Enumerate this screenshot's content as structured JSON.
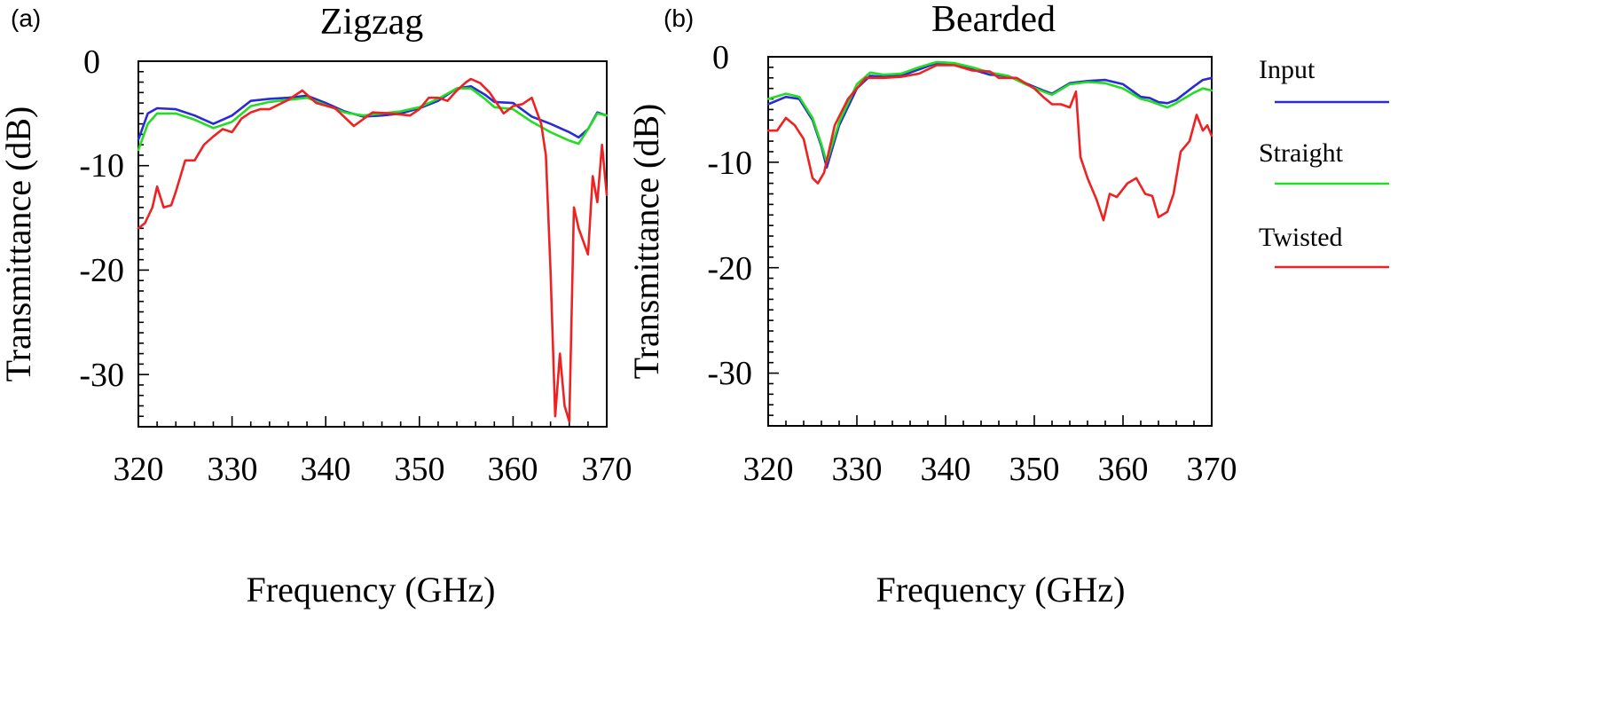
{
  "chart_data": [
    {
      "type": "line",
      "panel_label": "(a)",
      "title": "Zigzag",
      "xlabel": "Frequency (GHz)",
      "ylabel": "Transmittance (dB)",
      "xlim": [
        320,
        370
      ],
      "ylim": [
        -35,
        0
      ],
      "xticks": [
        "320",
        "330",
        "340",
        "350",
        "360",
        "370"
      ],
      "yticks": [
        "0",
        "-10",
        "-20",
        "-30"
      ],
      "series": [
        {
          "name": "Input",
          "color": "#2b2bd6",
          "x": [
            320,
            321,
            322,
            324,
            326,
            328,
            330,
            332,
            334,
            336,
            338,
            340,
            342,
            344,
            346,
            348,
            350,
            352,
            354,
            355.5,
            357,
            358,
            360,
            362,
            364,
            366,
            367,
            368,
            369,
            370
          ],
          "y": [
            -7.5,
            -5,
            -4.5,
            -4.6,
            -5.2,
            -6.0,
            -5.2,
            -3.8,
            -3.6,
            -3.5,
            -3.3,
            -4.0,
            -4.8,
            -5.3,
            -5.2,
            -5.0,
            -4.5,
            -3.8,
            -2.6,
            -2.4,
            -3.2,
            -3.9,
            -4.0,
            -5.3,
            -6.0,
            -6.8,
            -7.3,
            -6.5,
            -4.9,
            -5.2
          ]
        },
        {
          "name": "Straight",
          "color": "#22dd22",
          "x": [
            320,
            321,
            322,
            324,
            326,
            328,
            330,
            332,
            334,
            336,
            338,
            340,
            342,
            344,
            346,
            348,
            350,
            352,
            354,
            355.5,
            357,
            358,
            360,
            362,
            364,
            366,
            367,
            368,
            369,
            370
          ],
          "y": [
            -8.5,
            -6,
            -5.0,
            -5.0,
            -5.6,
            -6.4,
            -5.8,
            -4.3,
            -3.9,
            -3.7,
            -3.5,
            -4.2,
            -4.9,
            -5.2,
            -5.0,
            -4.8,
            -4.4,
            -3.6,
            -2.6,
            -2.6,
            -3.6,
            -4.4,
            -4.6,
            -5.8,
            -6.8,
            -7.6,
            -7.9,
            -6.5,
            -5.0,
            -5.2
          ]
        },
        {
          "name": "Twisted",
          "color": "#ee2222",
          "x": [
            320,
            320.7,
            321.5,
            322,
            322.7,
            323.5,
            324,
            325,
            326,
            327,
            328,
            329,
            330,
            331,
            332,
            333,
            334,
            336,
            337.5,
            339,
            341,
            343,
            345,
            347,
            349,
            350,
            351,
            352,
            353,
            354,
            355,
            355.5,
            356.5,
            357.5,
            359,
            360,
            361,
            362,
            363,
            363.5,
            364,
            364.5,
            365,
            365.5,
            366,
            366.5,
            367,
            368,
            368.5,
            369,
            369.5,
            370
          ],
          "y": [
            -16,
            -15.5,
            -14,
            -12,
            -14,
            -13.8,
            -12.5,
            -9.5,
            -9.5,
            -8.0,
            -7.2,
            -6.5,
            -6.8,
            -5.5,
            -4.9,
            -4.6,
            -4.6,
            -3.7,
            -2.8,
            -4.0,
            -4.5,
            -6.2,
            -4.9,
            -5.0,
            -5.2,
            -4.6,
            -3.5,
            -3.5,
            -3.8,
            -2.8,
            -2.0,
            -1.7,
            -2.1,
            -3.0,
            -5.0,
            -4.3,
            -4.1,
            -3.5,
            -6.0,
            -9.0,
            -20.0,
            -34.0,
            -28.0,
            -33.0,
            -34.5,
            -14.0,
            -16.0,
            -18.5,
            -11.0,
            -13.5,
            -8.0,
            -12.8
          ]
        }
      ]
    },
    {
      "type": "line",
      "panel_label": "(b)",
      "title": "Bearded",
      "xlabel": "Frequency (GHz)",
      "ylabel": "Transmittance (dB)",
      "xlim": [
        320,
        370
      ],
      "ylim": [
        -35,
        0
      ],
      "xticks": [
        "320",
        "330",
        "340",
        "350",
        "360",
        "370"
      ],
      "yticks": [
        "0",
        "-10",
        "-20",
        "-30"
      ],
      "series": [
        {
          "name": "Input",
          "color": "#2b2bd6",
          "x": [
            320,
            322,
            323.5,
            325,
            326,
            326.6,
            328,
            330,
            331.5,
            333,
            335,
            337,
            339,
            341,
            343,
            345,
            347,
            349,
            351,
            352,
            354,
            356,
            358,
            360,
            362,
            363,
            364,
            365,
            366,
            368,
            369,
            370
          ],
          "y": [
            -4.5,
            -3.8,
            -4.0,
            -6.0,
            -8.5,
            -10.5,
            -6.5,
            -3.0,
            -1.8,
            -1.9,
            -1.8,
            -1.2,
            -0.6,
            -0.7,
            -1.2,
            -1.7,
            -1.8,
            -2.5,
            -3.2,
            -3.5,
            -2.5,
            -2.3,
            -2.2,
            -2.6,
            -3.8,
            -3.9,
            -4.3,
            -4.4,
            -4.1,
            -2.8,
            -2.2,
            -2.0
          ]
        },
        {
          "name": "Straight",
          "color": "#22dd22",
          "x": [
            320,
            322,
            323.5,
            325,
            326,
            326.6,
            328,
            330,
            331.5,
            333,
            335,
            337,
            339,
            341,
            343,
            345,
            347,
            349,
            351,
            352,
            354,
            356,
            358,
            360,
            362,
            363,
            364,
            365,
            366,
            368,
            369,
            370
          ],
          "y": [
            -4.0,
            -3.5,
            -3.8,
            -5.8,
            -8.3,
            -10.0,
            -6.2,
            -2.6,
            -1.5,
            -1.7,
            -1.6,
            -1.0,
            -0.5,
            -0.6,
            -1.0,
            -1.5,
            -1.8,
            -2.6,
            -3.3,
            -3.6,
            -2.6,
            -2.4,
            -2.5,
            -3.0,
            -4.0,
            -4.2,
            -4.5,
            -4.8,
            -4.4,
            -3.4,
            -3.0,
            -3.2
          ]
        },
        {
          "name": "Twisted",
          "color": "#ee2222",
          "x": [
            320,
            321,
            322,
            323,
            324,
            325,
            325.6,
            326.3,
            327.5,
            329,
            331,
            333,
            335,
            337,
            339,
            341,
            343,
            345,
            346,
            348,
            350,
            351,
            352,
            353,
            354,
            354.7,
            355.2,
            356,
            357,
            357.8,
            358.5,
            359.3,
            360.5,
            361.5,
            362.5,
            363.3,
            364,
            365,
            365.7,
            366.5,
            367.5,
            368.3,
            369,
            369.5,
            370
          ],
          "y": [
            -7.0,
            -7.0,
            -5.8,
            -6.5,
            -7.8,
            -11.5,
            -12.0,
            -11.0,
            -6.5,
            -4.0,
            -2.0,
            -2.0,
            -1.9,
            -1.6,
            -0.8,
            -0.8,
            -1.3,
            -1.4,
            -2.0,
            -2.0,
            -3.0,
            -3.8,
            -4.5,
            -4.5,
            -4.8,
            -3.3,
            -9.5,
            -11.5,
            -13.5,
            -15.5,
            -13.0,
            -13.3,
            -12.0,
            -11.5,
            -13.0,
            -13.2,
            -15.2,
            -14.7,
            -13.0,
            -9.0,
            -8.0,
            -5.5,
            -7.0,
            -6.5,
            -7.5
          ]
        }
      ]
    }
  ],
  "legend": {
    "items": [
      {
        "label": "Input",
        "color": "#2b2bd6"
      },
      {
        "label": "Straight",
        "color": "#22dd22"
      },
      {
        "label": "Twisted",
        "color": "#ee2222"
      }
    ]
  }
}
